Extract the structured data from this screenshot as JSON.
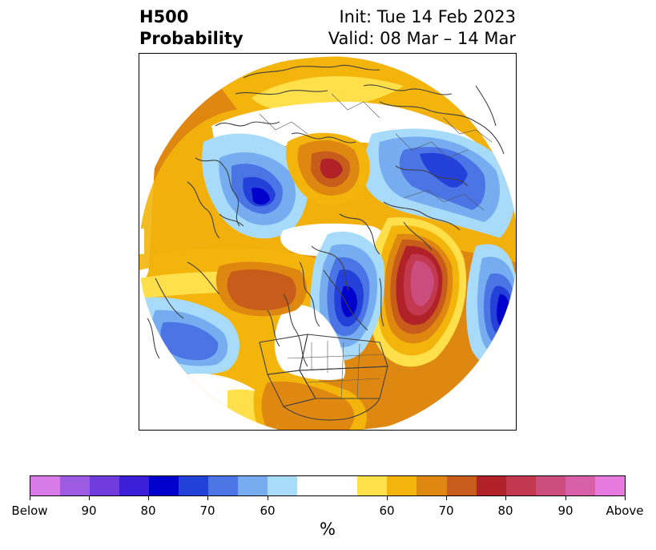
{
  "header": {
    "variable": "H500",
    "product": "Probability",
    "init": "Init: Tue 14 Feb 2023",
    "valid": "Valid: 08 Mar – 14 Mar"
  },
  "colorbar": {
    "unit": "%",
    "colors": [
      "#d87ae8",
      "#9d5be3",
      "#6f3bdd",
      "#3a1fd6",
      "#0000cc",
      "#2340d9",
      "#4b74e5",
      "#75adf0",
      "#a8dbfa",
      "#ffffff",
      "#ffffff",
      "#ffe04a",
      "#f3b50c",
      "#de8812",
      "#c75c1b",
      "#b02227",
      "#c2394f",
      "#ca4d7e",
      "#d860a8",
      "#e67ade"
    ],
    "ticks": [
      "Below",
      "90",
      "80",
      "70",
      "60",
      "60",
      "70",
      "80",
      "90",
      "Above"
    ]
  },
  "map": {
    "projection": "north-polar-stereographic",
    "features": [
      "coastlines",
      "country-borders",
      "us-state-borders",
      "probability-contours"
    ]
  }
}
